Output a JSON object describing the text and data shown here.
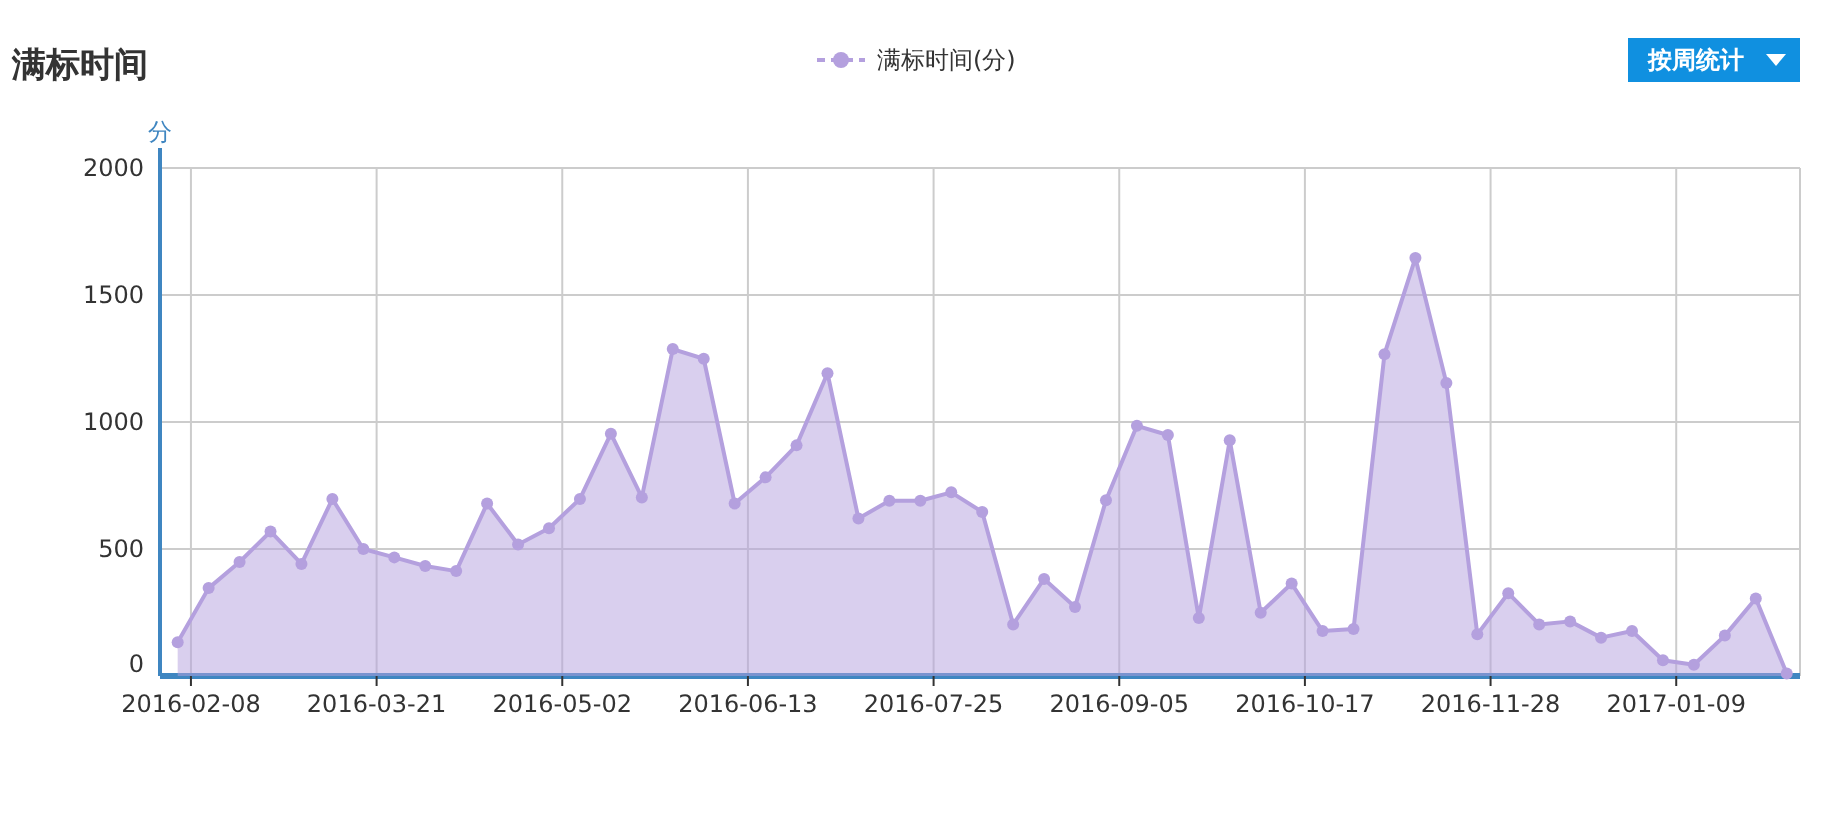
{
  "chart_data": {
    "type": "area",
    "title": "满标时间",
    "ylabel": "分",
    "legend": "top",
    "marker": "circle",
    "grid": true,
    "annotations": [
      "按周统计"
    ],
    "xlim": [
      "2016-02-01",
      "2017-02-06"
    ],
    "xticks": [
      "2016-02-08",
      "2016-03-21",
      "2016-05-02",
      "2016-06-13",
      "2016-07-25",
      "2016-09-05",
      "2016-10-17",
      "2016-11-28",
      "2017-01-09"
    ],
    "ylim": [
      0,
      2000
    ],
    "yticks": [
      0,
      500,
      1000,
      1500,
      2000
    ],
    "series": [
      {
        "name": "满标时间(分)",
        "color": "#b4a0de",
        "x": [
          "2016-02-05",
          "2016-02-12",
          "2016-02-19",
          "2016-02-26",
          "2016-03-04",
          "2016-03-11",
          "2016-03-18",
          "2016-03-25",
          "2016-04-01",
          "2016-04-08",
          "2016-04-15",
          "2016-04-22",
          "2016-04-29",
          "2016-05-06",
          "2016-05-13",
          "2016-05-20",
          "2016-05-27",
          "2016-06-03",
          "2016-06-10",
          "2016-06-17",
          "2016-06-24",
          "2016-07-01",
          "2016-07-08",
          "2016-07-15",
          "2016-07-22",
          "2016-07-29",
          "2016-08-05",
          "2016-08-12",
          "2016-08-19",
          "2016-08-26",
          "2016-09-02",
          "2016-09-09",
          "2016-09-16",
          "2016-09-23",
          "2016-09-30",
          "2016-10-07",
          "2016-10-14",
          "2016-10-21",
          "2016-10-28",
          "2016-11-04",
          "2016-11-11",
          "2016-11-18",
          "2016-11-25",
          "2016-12-02",
          "2016-12-09",
          "2016-12-16",
          "2016-12-23",
          "2016-12-30",
          "2017-01-06",
          "2017-01-13",
          "2017-01-20",
          "2017-01-27",
          "2017-02-03"
        ],
        "values": [
          133,
          346,
          449,
          569,
          441,
          697,
          500,
          467,
          433,
          413,
          679,
          518,
          582,
          697,
          954,
          703,
          1287,
          1249,
          679,
          782,
          908,
          1192,
          620,
          690,
          690,
          723,
          646,
          203,
          382,
          272,
          692,
          985,
          949,
          228,
          928,
          249,
          364,
          177,
          185,
          1267,
          1646,
          1154,
          164,
          326,
          203,
          215,
          151,
          177,
          62,
          44,
          159,
          305,
          10
        ]
      }
    ]
  }
}
